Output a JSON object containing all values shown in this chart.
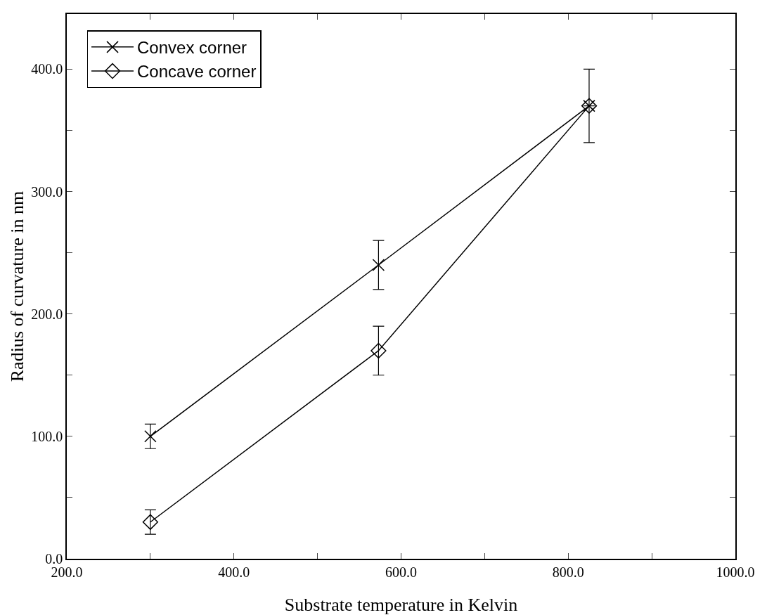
{
  "chart_data": {
    "type": "line",
    "xlabel": "Substrate temperature in Kelvin",
    "ylabel": "Radius of curvature in nm",
    "x": [
      300,
      573,
      825
    ],
    "series": [
      {
        "name": "Convex corner",
        "color": "#000000",
        "marker": "cross",
        "values": [
          100,
          240,
          370
        ],
        "errors": [
          10,
          20,
          30
        ]
      },
      {
        "name": "Concave corner",
        "color": "#000000",
        "marker": "diamond",
        "values": [
          30,
          170,
          370
        ],
        "errors": [
          10,
          20,
          null
        ]
      }
    ],
    "xlim": [
      200,
      1000
    ],
    "xticks": [
      {
        "value": 200,
        "label": "200.0"
      },
      {
        "value": 300,
        "label": null
      },
      {
        "value": 400,
        "label": "400.0"
      },
      {
        "value": 500,
        "label": null
      },
      {
        "value": 600,
        "label": "600.0"
      },
      {
        "value": 700,
        "label": null
      },
      {
        "value": 800,
        "label": "800.0"
      },
      {
        "value": 900,
        "label": null
      },
      {
        "value": 1000,
        "label": "1000.0"
      }
    ],
    "ylim": [
      0,
      445
    ],
    "yticks": [
      {
        "value": 0,
        "label": "0.0"
      },
      {
        "value": 50,
        "label": null
      },
      {
        "value": 100,
        "label": "100.0"
      },
      {
        "value": 150,
        "label": null
      },
      {
        "value": 200,
        "label": "200.0"
      },
      {
        "value": 250,
        "label": null
      },
      {
        "value": 300,
        "label": "300.0"
      },
      {
        "value": 350,
        "label": null
      },
      {
        "value": 400,
        "label": "400.0"
      }
    ],
    "grid": false,
    "legend": "top left",
    "line_style": "solid"
  }
}
